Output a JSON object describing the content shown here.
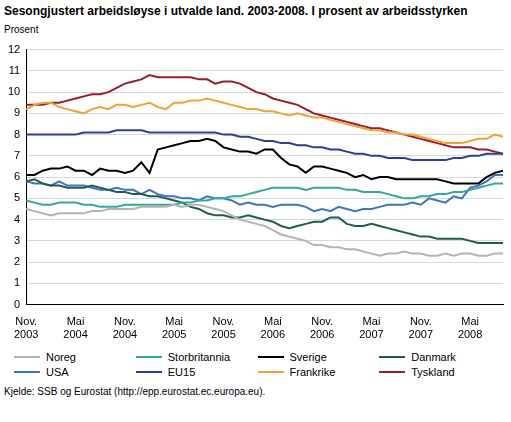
{
  "chart_data": {
    "type": "line",
    "title": "Sesongjustert arbeidsløyse i utvalde land. 2003-2008. I prosent av arbeidsstyrken",
    "y_label": "Prosent",
    "caption": "Kjelde: SSB og Eurostat (http://epp.eurostat.ec.europa.eu).",
    "categories": [
      "Nov. 2003",
      null,
      null,
      null,
      null,
      null,
      "Mai 2004",
      null,
      null,
      null,
      null,
      null,
      "Nov. 2004",
      null,
      null,
      null,
      null,
      null,
      "Mai 2005",
      null,
      null,
      null,
      null,
      null,
      "Nov. 2005",
      null,
      null,
      null,
      null,
      null,
      "Mai 2006",
      null,
      null,
      null,
      null,
      null,
      "Nov. 2006",
      null,
      null,
      null,
      null,
      null,
      "Mai 2007",
      null,
      null,
      null,
      null,
      null,
      "Nov. 2007",
      null,
      null,
      null,
      null,
      null,
      "Mai 2008",
      null,
      null,
      null,
      null
    ],
    "ylim": [
      0,
      12
    ],
    "yticks": [
      0,
      1,
      2,
      3,
      4,
      5,
      6,
      7,
      8,
      9,
      10,
      11,
      12
    ],
    "grid": true,
    "legend": "bottom",
    "series": [
      {
        "name": "Noreg",
        "color": "#b4b4b4",
        "values": [
          4.5,
          4.4,
          4.3,
          4.2,
          4.3,
          4.3,
          4.3,
          4.3,
          4.4,
          4.4,
          4.5,
          4.5,
          4.5,
          4.5,
          4.6,
          4.6,
          4.6,
          4.6,
          4.7,
          4.6,
          4.7,
          4.7,
          4.6,
          4.5,
          4.4,
          4.2,
          4.0,
          3.9,
          3.8,
          3.7,
          3.5,
          3.3,
          3.2,
          3.1,
          3.0,
          2.8,
          2.8,
          2.7,
          2.7,
          2.6,
          2.6,
          2.5,
          2.4,
          2.3,
          2.4,
          2.4,
          2.5,
          2.4,
          2.4,
          2.3,
          2.3,
          2.4,
          2.3,
          2.4,
          2.4,
          2.3,
          2.3,
          2.4,
          2.4
        ]
      },
      {
        "name": "Storbritannia",
        "color": "#36a89a",
        "values": [
          4.9,
          4.8,
          4.7,
          4.7,
          4.8,
          4.8,
          4.8,
          4.7,
          4.7,
          4.6,
          4.6,
          4.6,
          4.7,
          4.7,
          4.7,
          4.7,
          4.7,
          4.7,
          4.7,
          4.8,
          4.8,
          4.9,
          4.9,
          5.0,
          5.0,
          5.1,
          5.1,
          5.2,
          5.3,
          5.4,
          5.5,
          5.5,
          5.5,
          5.5,
          5.4,
          5.5,
          5.5,
          5.5,
          5.5,
          5.4,
          5.4,
          5.3,
          5.3,
          5.3,
          5.2,
          5.1,
          5.0,
          5.0,
          5.1,
          5.1,
          5.2,
          5.2,
          5.3,
          5.3,
          5.4,
          5.5,
          5.6,
          5.7,
          5.7
        ]
      },
      {
        "name": "Sverige",
        "color": "#000000",
        "values": [
          6.1,
          6.1,
          6.3,
          6.4,
          6.4,
          6.5,
          6.3,
          6.3,
          6.1,
          6.4,
          6.3,
          6.3,
          6.2,
          6.3,
          6.7,
          6.2,
          7.3,
          7.4,
          7.5,
          7.6,
          7.7,
          7.7,
          7.8,
          7.7,
          7.4,
          7.3,
          7.2,
          7.2,
          7.1,
          7.3,
          7.3,
          6.9,
          6.6,
          6.5,
          6.2,
          6.5,
          6.5,
          6.4,
          6.3,
          6.2,
          6.0,
          6.1,
          5.9,
          6.0,
          6.0,
          5.9,
          5.9,
          5.9,
          5.9,
          5.9,
          5.9,
          5.8,
          5.7,
          5.7,
          5.7,
          5.7,
          6.0,
          6.2,
          6.3
        ]
      },
      {
        "name": "Danmark",
        "color": "#1d5f4b",
        "values": [
          5.8,
          5.9,
          5.7,
          5.6,
          5.6,
          5.5,
          5.5,
          5.5,
          5.6,
          5.5,
          5.4,
          5.3,
          5.3,
          5.2,
          5.2,
          5.1,
          5.1,
          5.0,
          4.9,
          4.8,
          4.6,
          4.5,
          4.3,
          4.2,
          4.2,
          4.1,
          4.1,
          4.2,
          4.1,
          4.0,
          3.9,
          3.7,
          3.6,
          3.7,
          3.8,
          3.9,
          3.9,
          4.1,
          4.1,
          3.8,
          3.7,
          3.7,
          3.8,
          3.7,
          3.6,
          3.5,
          3.4,
          3.3,
          3.2,
          3.2,
          3.1,
          3.1,
          3.1,
          3.1,
          3.0,
          2.9,
          2.9,
          2.9,
          2.9
        ]
      },
      {
        "name": "USA",
        "color": "#3f73c4",
        "values": [
          5.8,
          5.7,
          5.7,
          5.6,
          5.8,
          5.6,
          5.6,
          5.6,
          5.5,
          5.4,
          5.4,
          5.5,
          5.4,
          5.4,
          5.2,
          5.4,
          5.2,
          5.1,
          5.1,
          5.0,
          5.0,
          4.9,
          5.1,
          5.0,
          5.0,
          4.9,
          4.7,
          4.8,
          4.7,
          4.7,
          4.6,
          4.7,
          4.7,
          4.7,
          4.6,
          4.4,
          4.5,
          4.4,
          4.6,
          4.5,
          4.4,
          4.5,
          4.5,
          4.6,
          4.7,
          4.7,
          4.7,
          4.8,
          4.7,
          5.0,
          4.9,
          4.8,
          5.1,
          5.0,
          5.5,
          5.6,
          5.8,
          6.1,
          6.1
        ]
      },
      {
        "name": "EU15",
        "color": "#2b3f96",
        "values": [
          8.0,
          8.0,
          8.0,
          8.0,
          8.0,
          8.0,
          8.0,
          8.1,
          8.1,
          8.1,
          8.1,
          8.2,
          8.2,
          8.2,
          8.2,
          8.1,
          8.1,
          8.1,
          8.1,
          8.1,
          8.1,
          8.1,
          8.1,
          8.1,
          8.0,
          8.0,
          7.9,
          7.9,
          7.8,
          7.7,
          7.7,
          7.6,
          7.6,
          7.5,
          7.5,
          7.4,
          7.4,
          7.3,
          7.3,
          7.2,
          7.1,
          7.1,
          7.0,
          7.0,
          6.9,
          6.9,
          6.9,
          6.8,
          6.8,
          6.8,
          6.8,
          6.8,
          6.9,
          6.9,
          7.0,
          7.0,
          7.1,
          7.1,
          7.1
        ]
      },
      {
        "name": "Frankrike",
        "color": "#f0a236",
        "values": [
          9.2,
          9.4,
          9.5,
          9.5,
          9.3,
          9.2,
          9.1,
          9.0,
          9.2,
          9.3,
          9.2,
          9.4,
          9.4,
          9.3,
          9.4,
          9.5,
          9.3,
          9.2,
          9.5,
          9.5,
          9.6,
          9.6,
          9.7,
          9.6,
          9.5,
          9.4,
          9.3,
          9.2,
          9.2,
          9.1,
          9.1,
          9.0,
          8.9,
          9.0,
          8.9,
          8.8,
          8.8,
          8.7,
          8.6,
          8.5,
          8.4,
          8.3,
          8.2,
          8.2,
          8.1,
          8.1,
          8.0,
          8.0,
          7.9,
          7.8,
          7.7,
          7.6,
          7.6,
          7.6,
          7.7,
          7.8,
          7.8,
          8.0,
          7.9
        ]
      },
      {
        "name": "Tyskland",
        "color": "#9b1c2c",
        "values": [
          9.4,
          9.4,
          9.4,
          9.5,
          9.5,
          9.6,
          9.7,
          9.8,
          9.9,
          9.9,
          10.0,
          10.2,
          10.4,
          10.5,
          10.6,
          10.8,
          10.7,
          10.7,
          10.7,
          10.7,
          10.7,
          10.6,
          10.6,
          10.4,
          10.5,
          10.5,
          10.4,
          10.2,
          10.0,
          9.9,
          9.7,
          9.6,
          9.5,
          9.4,
          9.2,
          9.0,
          8.9,
          8.8,
          8.7,
          8.6,
          8.5,
          8.4,
          8.3,
          8.3,
          8.2,
          8.1,
          8.0,
          7.9,
          7.8,
          7.7,
          7.6,
          7.5,
          7.4,
          7.4,
          7.4,
          7.3,
          7.3,
          7.2,
          7.1
        ]
      }
    ]
  }
}
